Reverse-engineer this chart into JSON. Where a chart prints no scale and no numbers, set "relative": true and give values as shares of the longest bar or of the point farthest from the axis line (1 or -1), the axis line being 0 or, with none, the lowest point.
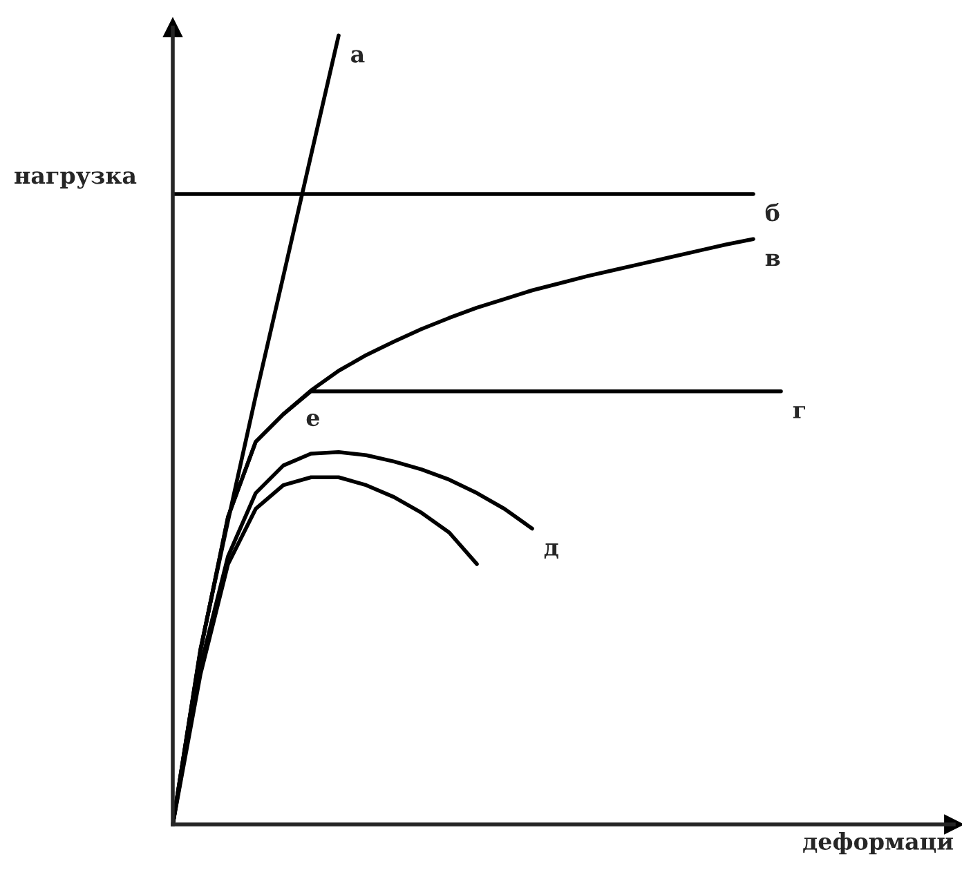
{
  "chart_data": {
    "type": "line",
    "relative": true,
    "xlabel": "деформаци",
    "ylabel": "нагрузка",
    "legend": false,
    "marker": "none",
    "line_style": "solid",
    "categories": [
      null,
      null,
      null,
      null,
      null,
      null,
      null,
      null,
      null,
      null,
      null,
      null,
      null,
      null,
      null,
      null,
      null,
      null,
      null,
      null,
      null,
      null,
      null
    ],
    "series": [
      {
        "name": "а",
        "color": "#000000",
        "values": [
          0,
          0.222,
          0.385,
          0.543,
          0.695,
          0.848,
          1,
          null,
          null,
          null,
          null,
          null,
          null,
          null,
          null,
          null,
          null,
          null,
          null,
          null,
          null,
          null,
          null
        ]
      },
      {
        "name": "б",
        "color": "#000000",
        "values": [
          0.799,
          0.799,
          0.799,
          0.799,
          0.799,
          0.799,
          0.799,
          0.799,
          0.799,
          0.799,
          0.799,
          0.799,
          0.799,
          0.799,
          0.799,
          0.799,
          0.799,
          0.799,
          0.799,
          0.799,
          0.799,
          0.799,
          null
        ]
      },
      {
        "name": "в",
        "color": "#000000",
        "values": [
          0,
          0.22,
          0.39,
          0.485,
          0.52,
          0.55,
          0.575,
          0.595,
          0.612,
          0.628,
          0.642,
          0.655,
          0.666,
          0.677,
          0.686,
          0.695,
          0.703,
          0.711,
          0.719,
          0.727,
          0.735,
          0.742,
          null
        ]
      },
      {
        "name": "г",
        "color": "#000000",
        "values": [
          0,
          0.22,
          0.39,
          0.485,
          0.52,
          0.549,
          0.549,
          0.549,
          0.549,
          0.549,
          0.549,
          0.549,
          0.549,
          0.549,
          0.549,
          0.549,
          0.549,
          0.549,
          0.549,
          0.549,
          0.549,
          0.549,
          0.549
        ]
      },
      {
        "name": "д",
        "color": "#000000",
        "values": [
          0,
          0.2,
          0.34,
          0.42,
          0.455,
          0.47,
          0.472,
          0.468,
          0.46,
          0.45,
          0.437,
          0.42,
          0.4,
          0.375,
          null,
          null,
          null,
          null,
          null,
          null,
          null,
          null,
          null
        ]
      },
      {
        "color": "#000000",
        "values": [
          0,
          0.19,
          0.33,
          0.4,
          0.43,
          0.44,
          0.44,
          0.43,
          0.415,
          0.395,
          0.37,
          0.33,
          null,
          null,
          null,
          null,
          null,
          null,
          null,
          null,
          null,
          null,
          null
        ]
      }
    ],
    "annotations": [
      {
        "text": "е",
        "y": 0.549
      }
    ]
  }
}
